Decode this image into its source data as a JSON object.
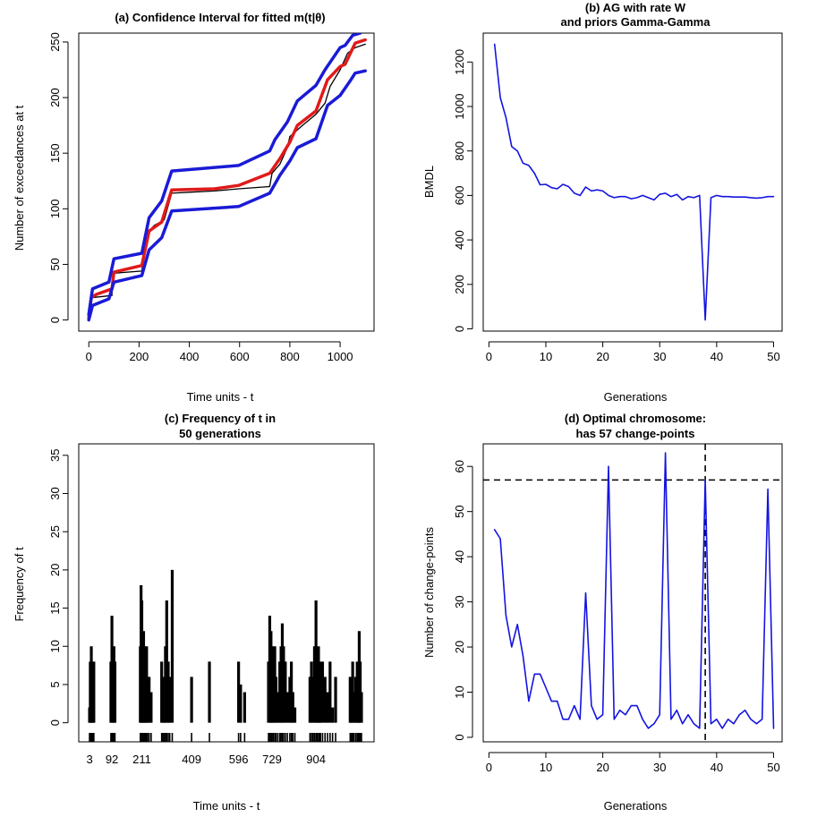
{
  "colors": {
    "blue": "#1a1ad6",
    "red": "#e01a1a",
    "black": "#000000",
    "line_blue": "#1414e0"
  },
  "chart_data": [
    {
      "id": "a",
      "type": "line",
      "title": "(a) Confidence Interval for fitted m(t|θ)",
      "xlabel": "Time units - t",
      "ylabel": "Number of exceedances at t",
      "xlim": [
        -40,
        1135
      ],
      "ylim": [
        -10,
        258
      ],
      "xticks": [
        0,
        200,
        400,
        600,
        800,
        1000
      ],
      "yticks": [
        0,
        50,
        100,
        150,
        200,
        250
      ],
      "series": [
        {
          "name": "observed",
          "color": "black",
          "width": 1.3,
          "x": [
            0,
            3,
            10,
            92,
            95,
            211,
            215,
            240,
            260,
            300,
            330,
            409,
            500,
            596,
            720,
            729,
            760,
            790,
            800,
            850,
            904,
            940,
            960,
            1000,
            1030,
            1060,
            1100
          ],
          "y": [
            0,
            10,
            20,
            22,
            42,
            44,
            50,
            80,
            85,
            90,
            114,
            115,
            116,
            118,
            120,
            132,
            140,
            155,
            165,
            175,
            185,
            195,
            210,
            225,
            240,
            245,
            248
          ]
        },
        {
          "name": "fitted",
          "color": "red",
          "width": 3.5,
          "x": [
            0,
            10,
            30,
            92,
            100,
            211,
            240,
            290,
            330,
            500,
            596,
            720,
            760,
            800,
            830,
            904,
            950,
            1000,
            1020,
            1060,
            1100
          ],
          "y": [
            2,
            20,
            23,
            28,
            43,
            49,
            80,
            88,
            117,
            118,
            121,
            132,
            145,
            160,
            175,
            188,
            216,
            228,
            230,
            249,
            252
          ]
        },
        {
          "name": "upper",
          "color": "blue",
          "width": 3.5,
          "x": [
            0,
            15,
            80,
            100,
            211,
            240,
            290,
            330,
            596,
            720,
            740,
            790,
            830,
            904,
            940,
            1000,
            1020,
            1050,
            1080
          ],
          "y": [
            5,
            28,
            34,
            55,
            60,
            92,
            107,
            134,
            139,
            152,
            162,
            178,
            197,
            211,
            225,
            245,
            247,
            256,
            258
          ]
        },
        {
          "name": "lower",
          "color": "blue",
          "width": 3.5,
          "x": [
            0,
            15,
            80,
            100,
            211,
            240,
            290,
            330,
            596,
            720,
            760,
            800,
            830,
            904,
            950,
            1000,
            1040,
            1060,
            1100
          ],
          "y": [
            0,
            13,
            19,
            34,
            40,
            63,
            74,
            98,
            102,
            114,
            130,
            143,
            155,
            163,
            193,
            202,
            215,
            222,
            224
          ]
        }
      ]
    },
    {
      "id": "b",
      "type": "line",
      "title_lines": [
        "(b) AG with rate W",
        "and priors Gamma-Gamma"
      ],
      "xlabel": "Generations",
      "ylabel": "BMDL",
      "xlim": [
        -1,
        51.5
      ],
      "ylim": [
        -10,
        1330
      ],
      "xticks": [
        0,
        10,
        20,
        30,
        40,
        50
      ],
      "yticks": [
        0,
        200,
        400,
        600,
        800,
        1000,
        1200
      ],
      "series": [
        {
          "name": "BMDL",
          "color": "line_blue",
          "width": 1.6,
          "x": [
            1,
            2,
            3,
            4,
            5,
            6,
            7,
            8,
            9,
            10,
            11,
            12,
            13,
            14,
            15,
            16,
            17,
            18,
            19,
            20,
            21,
            22,
            23,
            24,
            25,
            26,
            27,
            28,
            29,
            30,
            31,
            32,
            33,
            34,
            35,
            36,
            37,
            38,
            39,
            40,
            41,
            42,
            43,
            44,
            45,
            46,
            47,
            48,
            49,
            50
          ],
          "y": [
            1280,
            1040,
            950,
            820,
            800,
            745,
            735,
            700,
            648,
            650,
            635,
            630,
            650,
            640,
            610,
            600,
            638,
            620,
            625,
            620,
            600,
            590,
            595,
            595,
            585,
            590,
            600,
            590,
            580,
            605,
            610,
            595,
            605,
            580,
            595,
            590,
            600,
            40,
            590,
            600,
            595,
            595,
            593,
            593,
            593,
            590,
            588,
            590,
            595,
            595
          ]
        }
      ]
    },
    {
      "id": "c",
      "type": "bar",
      "title_lines": [
        "(c) Frequency of t in",
        "50 generations"
      ],
      "xlabel": "Time units - t",
      "ylabel": "Frequency of t",
      "xlim": [
        -40,
        1135
      ],
      "ylim": [
        -2.5,
        36.5
      ],
      "xtick_labels": [
        "3",
        "92",
        "211",
        "409",
        "596",
        "729",
        "904"
      ],
      "xtick_values": [
        3,
        92,
        211,
        409,
        596,
        729,
        904
      ],
      "yticks": [
        0,
        5,
        10,
        15,
        20,
        25,
        30,
        35
      ],
      "bars": [
        {
          "x": 3,
          "v": 2
        },
        {
          "x": 6,
          "v": 8
        },
        {
          "x": 10,
          "v": 10
        },
        {
          "x": 13,
          "v": 8
        },
        {
          "x": 17,
          "v": 4
        },
        {
          "x": 20,
          "v": 8
        },
        {
          "x": 88,
          "v": 8
        },
        {
          "x": 92,
          "v": 14
        },
        {
          "x": 96,
          "v": 8
        },
        {
          "x": 100,
          "v": 10
        },
        {
          "x": 104,
          "v": 8
        },
        {
          "x": 205,
          "v": 10
        },
        {
          "x": 208,
          "v": 18
        },
        {
          "x": 211,
          "v": 16
        },
        {
          "x": 215,
          "v": 8
        },
        {
          "x": 218,
          "v": 12
        },
        {
          "x": 222,
          "v": 10
        },
        {
          "x": 225,
          "v": 6
        },
        {
          "x": 230,
          "v": 10
        },
        {
          "x": 234,
          "v": 6
        },
        {
          "x": 240,
          "v": 6
        },
        {
          "x": 248,
          "v": 4
        },
        {
          "x": 290,
          "v": 8
        },
        {
          "x": 295,
          "v": 6
        },
        {
          "x": 300,
          "v": 4
        },
        {
          "x": 305,
          "v": 10
        },
        {
          "x": 310,
          "v": 16
        },
        {
          "x": 316,
          "v": 8
        },
        {
          "x": 322,
          "v": 6
        },
        {
          "x": 332,
          "v": 20
        },
        {
          "x": 409,
          "v": 6
        },
        {
          "x": 480,
          "v": 8
        },
        {
          "x": 596,
          "v": 8
        },
        {
          "x": 604,
          "v": 5
        },
        {
          "x": 620,
          "v": 4
        },
        {
          "x": 715,
          "v": 8
        },
        {
          "x": 720,
          "v": 14
        },
        {
          "x": 725,
          "v": 12
        },
        {
          "x": 729,
          "v": 10
        },
        {
          "x": 734,
          "v": 8
        },
        {
          "x": 740,
          "v": 10
        },
        {
          "x": 745,
          "v": 6
        },
        {
          "x": 752,
          "v": 4
        },
        {
          "x": 760,
          "v": 8
        },
        {
          "x": 765,
          "v": 10
        },
        {
          "x": 770,
          "v": 13
        },
        {
          "x": 775,
          "v": 10
        },
        {
          "x": 782,
          "v": 8
        },
        {
          "x": 790,
          "v": 4
        },
        {
          "x": 800,
          "v": 6
        },
        {
          "x": 806,
          "v": 8
        },
        {
          "x": 812,
          "v": 4
        },
        {
          "x": 820,
          "v": 2
        },
        {
          "x": 880,
          "v": 6
        },
        {
          "x": 886,
          "v": 8
        },
        {
          "x": 892,
          "v": 6
        },
        {
          "x": 898,
          "v": 10
        },
        {
          "x": 904,
          "v": 16
        },
        {
          "x": 908,
          "v": 4
        },
        {
          "x": 914,
          "v": 10
        },
        {
          "x": 918,
          "v": 6
        },
        {
          "x": 922,
          "v": 8
        },
        {
          "x": 930,
          "v": 8
        },
        {
          "x": 940,
          "v": 6
        },
        {
          "x": 950,
          "v": 4
        },
        {
          "x": 960,
          "v": 8
        },
        {
          "x": 970,
          "v": 2
        },
        {
          "x": 982,
          "v": 6
        },
        {
          "x": 1040,
          "v": 6
        },
        {
          "x": 1045,
          "v": 2
        },
        {
          "x": 1050,
          "v": 8
        },
        {
          "x": 1055,
          "v": 4
        },
        {
          "x": 1062,
          "v": 6
        },
        {
          "x": 1068,
          "v": 8
        },
        {
          "x": 1072,
          "v": 6
        },
        {
          "x": 1076,
          "v": 12
        },
        {
          "x": 1080,
          "v": 8
        },
        {
          "x": 1085,
          "v": 4
        }
      ],
      "rug": [
        3,
        6,
        10,
        13,
        17,
        20,
        88,
        92,
        96,
        100,
        104,
        205,
        208,
        211,
        215,
        218,
        222,
        225,
        230,
        234,
        240,
        248,
        290,
        295,
        300,
        305,
        310,
        316,
        322,
        332,
        409,
        480,
        596,
        604,
        620,
        715,
        720,
        725,
        729,
        734,
        740,
        745,
        752,
        760,
        765,
        770,
        775,
        782,
        790,
        800,
        806,
        812,
        820,
        880,
        886,
        892,
        898,
        904,
        908,
        914,
        918,
        922,
        930,
        940,
        950,
        960,
        970,
        982,
        1040,
        1045,
        1050,
        1055,
        1062,
        1068,
        1072,
        1076,
        1080,
        1085
      ]
    },
    {
      "id": "d",
      "type": "line",
      "title_lines": [
        "(d) Optimal chromosome:",
        "has 57 change-points"
      ],
      "xlabel": "Generations",
      "ylabel": "Number of change-points",
      "xlim": [
        -1,
        51.5
      ],
      "ylim": [
        -1,
        65
      ],
      "xticks": [
        0,
        10,
        20,
        30,
        40,
        50
      ],
      "yticks": [
        0,
        10,
        20,
        30,
        40,
        50,
        60
      ],
      "hline": 57,
      "vline": 38,
      "series": [
        {
          "name": "change-points",
          "color": "line_blue",
          "width": 1.6,
          "x": [
            1,
            2,
            3,
            4,
            5,
            6,
            7,
            8,
            9,
            10,
            11,
            12,
            13,
            14,
            15,
            16,
            17,
            18,
            19,
            20,
            21,
            22,
            23,
            24,
            25,
            26,
            27,
            28,
            29,
            30,
            31,
            32,
            33,
            34,
            35,
            36,
            37,
            38,
            39,
            40,
            41,
            42,
            43,
            44,
            45,
            46,
            47,
            48,
            49,
            50
          ],
          "y": [
            46,
            44,
            27,
            20,
            25,
            18,
            8,
            14,
            14,
            11,
            8,
            8,
            4,
            4,
            7,
            4,
            32,
            7,
            4,
            5,
            60,
            4,
            6,
            5,
            7,
            7,
            4,
            2,
            3,
            5,
            63,
            4,
            6,
            3,
            5,
            3,
            2,
            57,
            3,
            4,
            2,
            4,
            3,
            5,
            6,
            4,
            3,
            4,
            55,
            2
          ]
        }
      ]
    }
  ]
}
